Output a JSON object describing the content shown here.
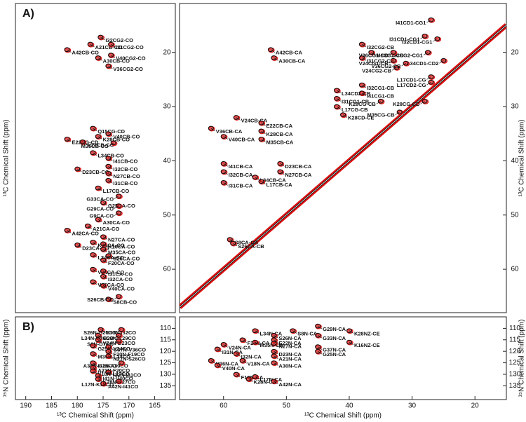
{
  "chart_data": [
    {
      "type": "scatter",
      "panel_label": "A)",
      "y_label": "¹³C Chemical Shift (ppm)",
      "xlim": [
        192,
        161
      ],
      "ylim": [
        11,
        68
      ],
      "yticks": [
        20,
        30,
        40,
        50,
        60
      ],
      "color": "#111111",
      "overlay_color": "#e01010",
      "diagonal": false,
      "peaks": [
        {
          "label": "A21CB-CO",
          "x": 177.5,
          "y": 18.5
        },
        {
          "label": "I32CG2-CO",
          "x": 175.5,
          "y": 17.2
        },
        {
          "label": "I31CG2-CO",
          "x": 173.5,
          "y": 18.5
        },
        {
          "label": "V40CG2-CO",
          "x": 173.5,
          "y": 20.5
        },
        {
          "label": "A42CB-CO",
          "x": 182,
          "y": 19.5
        },
        {
          "label": "A30CB-CO",
          "x": 176,
          "y": 21
        },
        {
          "label": "V36CG2-CO",
          "x": 174,
          "y": 22.5
        },
        {
          "label": "Q15CG-CD",
          "x": 177,
          "y": 34
        },
        {
          "label": "E22CG-CD",
          "x": 182,
          "y": 36
        },
        {
          "label": "V40CB-CO",
          "x": 174,
          "y": 35
        },
        {
          "label": "V24CB-CO",
          "x": 179,
          "y": 36.5
        },
        {
          "label": "K28CB-CO",
          "x": 176,
          "y": 35.5
        },
        {
          "label": "M35CB-CO",
          "x": 173,
          "y": 36.7
        },
        {
          "label": "L34CB-CO",
          "x": 177,
          "y": 38.5
        },
        {
          "label": "I41CB-CO",
          "x": 174,
          "y": 39.5
        },
        {
          "label": "I32CB-CO",
          "x": 174,
          "y": 41
        },
        {
          "label": "D23CB-CG",
          "x": 180,
          "y": 41.5
        },
        {
          "label": "N27CB-CO",
          "x": 174,
          "y": 42.3
        },
        {
          "label": "I31CB-CO",
          "x": 174,
          "y": 43.6
        },
        {
          "label": "L17CB-CO",
          "x": 176,
          "y": 45
        },
        {
          "label": "G33CA-CO",
          "x": 172,
          "y": 46.5
        },
        {
          "label": "G25CA-CO",
          "x": 175,
          "y": 47.7
        },
        {
          "label": "G29CA-CO",
          "x": 172,
          "y": 48.3
        },
        {
          "label": "G9CA-CO",
          "x": 172,
          "y": 49.6
        },
        {
          "label": "A30CA-CO",
          "x": 176,
          "y": 50.8
        },
        {
          "label": "A21CA-CO",
          "x": 178,
          "y": 52
        },
        {
          "label": "A42CA-CO",
          "x": 182,
          "y": 52.8
        },
        {
          "label": "N27CA-CO",
          "x": 175,
          "y": 54
        },
        {
          "label": "K28CA-CO",
          "x": 177,
          "y": 55
        },
        {
          "label": "K16CA-CO",
          "x": 175,
          "y": 55.3
        },
        {
          "label": "D23CA-CG",
          "x": 180,
          "y": 55.5
        },
        {
          "label": "M35CA-CO",
          "x": 175,
          "y": 56.3
        },
        {
          "label": "S26CA-CO",
          "x": 174,
          "y": 57.5
        },
        {
          "label": "L34CA-CO",
          "x": 177,
          "y": 57.3
        },
        {
          "label": "F20CA-CO",
          "x": 175,
          "y": 58.3
        },
        {
          "label": "V24CA-CO",
          "x": 177,
          "y": 60
        },
        {
          "label": "I31CA-CO",
          "x": 175,
          "y": 60.3
        },
        {
          "label": "I32CA-CO",
          "x": 175,
          "y": 61.3
        },
        {
          "label": "V36CA-CO",
          "x": 177,
          "y": 62.3
        },
        {
          "label": "V40CA-CO",
          "x": 175,
          "y": 63
        },
        {
          "label": "S8CB-CO",
          "x": 174,
          "y": 65.5
        },
        {
          "label": "S26CB-CO",
          "x": 172,
          "y": 65
        }
      ]
    },
    {
      "type": "scatter",
      "y_label": "¹³C Chemical Shift (ppm)",
      "xlim": [
        67,
        15
      ],
      "ylim": [
        11,
        68
      ],
      "yticks": [
        20,
        30,
        40,
        50,
        60
      ],
      "color": "#111111",
      "overlay_color": "#e01010",
      "diagonal": true,
      "peaks": [
        {
          "label": "I41CD1-CG1",
          "x": 27,
          "y": 14
        },
        {
          "label": "I31CD1-CG1",
          "x": 28,
          "y": 17
        },
        {
          "label": "I32CD1-CG1",
          "x": 26,
          "y": 17.5
        },
        {
          "label": "I32CG2-CG1",
          "x": 27.5,
          "y": 20
        },
        {
          "label": "L34CD1-CD2",
          "x": 25,
          "y": 21.5
        },
        {
          "label": "A42CB-CA",
          "x": 52.5,
          "y": 19.5
        },
        {
          "label": "I32CG2-CB",
          "x": 38,
          "y": 18.5
        },
        {
          "label": "I31CG2-CB",
          "x": 38,
          "y": 21
        },
        {
          "label": "I41CG2-CB",
          "x": 36.5,
          "y": 20
        },
        {
          "label": "A30CB-CA",
          "x": 52,
          "y": 21
        },
        {
          "label": "V24CG1-CB",
          "x": 33,
          "y": 21.5
        },
        {
          "label": "V36CG1-CB",
          "x": 33,
          "y": 20
        },
        {
          "label": "V24CG2-CB",
          "x": 32.5,
          "y": 22.8
        },
        {
          "label": "V36CG2-CB",
          "x": 31,
          "y": 22
        },
        {
          "label": "L17CD1-CG",
          "x": 27,
          "y": 24.5
        },
        {
          "label": "L17CD2-CG",
          "x": 27,
          "y": 25.5
        },
        {
          "label": "I32CG1-CB",
          "x": 38,
          "y": 26
        },
        {
          "label": "L34CD2-CB",
          "x": 42,
          "y": 27
        },
        {
          "label": "I41CG1-CB",
          "x": 38,
          "y": 27.5
        },
        {
          "label": "I31CG1-CB",
          "x": 42,
          "y": 28.5
        },
        {
          "label": "K28CG-CB",
          "x": 35,
          "y": 29
        },
        {
          "label": "K28CG-CD",
          "x": 28,
          "y": 29
        },
        {
          "label": "L17CG-CB",
          "x": 42,
          "y": 30
        },
        {
          "label": "K28CD-CE",
          "x": 41,
          "y": 31.5
        },
        {
          "label": "M35CG-CB",
          "x": 32,
          "y": 31
        },
        {
          "label": "V36CB-CA",
          "x": 62,
          "y": 34
        },
        {
          "label": "V24CB-CA",
          "x": 58,
          "y": 32
        },
        {
          "label": "E22CB-CA",
          "x": 54,
          "y": 33
        },
        {
          "label": "K28CB-CA",
          "x": 54,
          "y": 34.5
        },
        {
          "label": "M35CB-CA",
          "x": 54,
          "y": 36
        },
        {
          "label": "V40CB-CA",
          "x": 60,
          "y": 35.5
        },
        {
          "label": "I41CB-CA",
          "x": 60,
          "y": 40.5
        },
        {
          "label": "D23CB-CA",
          "x": 51,
          "y": 40.5
        },
        {
          "label": "I32CB-CA",
          "x": 60,
          "y": 42
        },
        {
          "label": "N27CB-CA",
          "x": 51,
          "y": 42
        },
        {
          "label": "I31CB-CA",
          "x": 60,
          "y": 44
        },
        {
          "label": "L34CB-CA",
          "x": 55,
          "y": 43
        },
        {
          "label": "L17CB-CA",
          "x": 54,
          "y": 43.8
        },
        {
          "label": "S8CA-CB",
          "x": 59,
          "y": 54.5
        },
        {
          "label": "S26CA-CB",
          "x": 58.5,
          "y": 55.2
        }
      ]
    },
    {
      "type": "scatter",
      "panel_label": "B)",
      "x_label": "¹³C Chemical Shift (ppm)",
      "y_label": "¹⁵N Chemical Shift (ppm)",
      "xlim": [
        192,
        161
      ],
      "ylim": [
        105,
        141
      ],
      "xticks": [
        190,
        185,
        180,
        175,
        170,
        165
      ],
      "yticks": [
        110,
        115,
        120,
        125,
        130,
        135
      ],
      "color": "#111111",
      "overlay_color": "#e01010",
      "diagonal": false,
      "peaks": [
        {
          "label": "G33N-I32CO",
          "x": 175.5,
          "y": 110.5
        },
        {
          "label": "S26N-G25CO",
          "x": 171.5,
          "y": 110.5
        },
        {
          "label": "G29N-K29CO",
          "x": 176,
          "y": 113
        },
        {
          "label": "L34N-G33CO",
          "x": 172,
          "y": 113
        },
        {
          "label": "V24N-D23CO",
          "x": 176,
          "y": 115
        },
        {
          "label": "S8N-D7CO",
          "x": 172,
          "y": 115.5
        },
        {
          "label": "G25N-V24CO",
          "x": 177,
          "y": 117.5
        },
        {
          "label": "G37N-V36CO",
          "x": 174,
          "y": 118
        },
        {
          "label": "F20N-F19CO",
          "x": 174,
          "y": 120
        },
        {
          "label": "M35N-L34CO",
          "x": 177,
          "y": 121
        },
        {
          "label": "N27N-S26CO",
          "x": 174,
          "y": 122
        },
        {
          "label": "I31N-A30CO",
          "x": 177,
          "y": 125
        },
        {
          "label": "A30N-G29CO",
          "x": 171.5,
          "y": 125
        },
        {
          "label": "A21N-F20CO",
          "x": 177,
          "y": 127
        },
        {
          "label": "I32N-I31CO",
          "x": 174,
          "y": 129
        },
        {
          "label": "V18N-L17CO",
          "x": 177,
          "y": 128.5
        },
        {
          "label": "I41N-V40CO",
          "x": 176,
          "y": 130.5
        },
        {
          "label": "K28N-N27CO",
          "x": 176,
          "y": 132
        },
        {
          "label": "L17N-K16CO",
          "x": 172,
          "y": 133
        },
        {
          "label": "A42N-I41CO",
          "x": 175,
          "y": 134
        }
      ]
    },
    {
      "type": "scatter",
      "x_label": "¹³C Chemical Shift (ppm)",
      "y_label": "¹⁵N Chemical Shift (ppm)",
      "xlim": [
        67,
        15
      ],
      "ylim": [
        105,
        141
      ],
      "xticks": [
        60,
        50,
        40,
        30,
        20
      ],
      "yticks": [
        110,
        115,
        120,
        125,
        130,
        135
      ],
      "color": "#111111",
      "overlay_color": "#e01010",
      "diagonal": false,
      "peaks": [
        {
          "label": "G29N-CA",
          "x": 45,
          "y": 109
        },
        {
          "label": "L34N-CA",
          "x": 55,
          "y": 111
        },
        {
          "label": "S8N-CA",
          "x": 49,
          "y": 111
        },
        {
          "label": "K28NZ-CE",
          "x": 40,
          "y": 111
        },
        {
          "label": "S26N-CA",
          "x": 52,
          "y": 113
        },
        {
          "label": "G33N-CA",
          "x": 45,
          "y": 113
        },
        {
          "label": "F20N-CA",
          "x": 57,
          "y": 115
        },
        {
          "label": "E22N-CA",
          "x": 52,
          "y": 115
        },
        {
          "label": "M35N-CA",
          "x": 55,
          "y": 116
        },
        {
          "label": "N27N-CA",
          "x": 52,
          "y": 116.5
        },
        {
          "label": "V24N-CA",
          "x": 60,
          "y": 117
        },
        {
          "label": "K16NZ-CE",
          "x": 40,
          "y": 116
        },
        {
          "label": "G37N-CA",
          "x": 45,
          "y": 118
        },
        {
          "label": "I31N-CA",
          "x": 61,
          "y": 119
        },
        {
          "label": "D23N-CA",
          "x": 52,
          "y": 120
        },
        {
          "label": "G25N-CA",
          "x": 45,
          "y": 120
        },
        {
          "label": "I32N-CA",
          "x": 58,
          "y": 121
        },
        {
          "label": "A21N-CA",
          "x": 52,
          "y": 122
        },
        {
          "label": "V36N-CA",
          "x": 62,
          "y": 124
        },
        {
          "label": "V18N-CA",
          "x": 57,
          "y": 124
        },
        {
          "label": "A30N-CA",
          "x": 52,
          "y": 125
        },
        {
          "label": "V40N-CA",
          "x": 61,
          "y": 126
        },
        {
          "label": "F19N-CA",
          "x": 58,
          "y": 130
        },
        {
          "label": "L17N-CA",
          "x": 55,
          "y": 131
        },
        {
          "label": "K28N-CA",
          "x": 56,
          "y": 132
        },
        {
          "label": "A42N-CA",
          "x": 52,
          "y": 133
        }
      ]
    }
  ]
}
